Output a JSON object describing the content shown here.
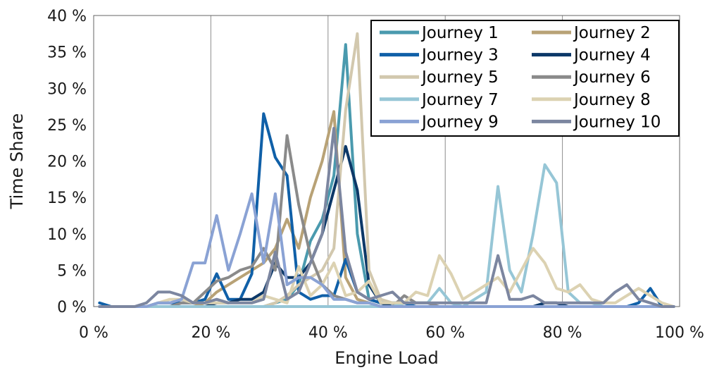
{
  "chart_data": {
    "type": "line",
    "xlabel": "Engine Load",
    "ylabel": "Time Share",
    "xlim": [
      0,
      100
    ],
    "ylim": [
      0,
      40
    ],
    "x_tick_labels": [
      "0 %",
      "20 %",
      "40 %",
      "60 %",
      "80 %",
      "100 %"
    ],
    "y_tick_labels": [
      "0 %",
      "5 %",
      "10 %",
      "15 %",
      "20 %",
      "25 %",
      "30 %",
      "35 %",
      "40 %"
    ],
    "grid": "vertical",
    "legend_position": "top-right",
    "x": [
      1,
      3,
      5,
      7,
      9,
      11,
      13,
      15,
      17,
      19,
      21,
      23,
      25,
      27,
      29,
      31,
      33,
      35,
      37,
      39,
      41,
      43,
      45,
      47,
      49,
      51,
      53,
      55,
      57,
      59,
      61,
      63,
      65,
      67,
      69,
      71,
      73,
      75,
      77,
      79,
      81,
      83,
      85,
      87,
      89,
      91,
      93,
      95,
      97,
      99
    ],
    "series": [
      {
        "name": "Journey 1",
        "color": "#4a9aae",
        "values": [
          0,
          0,
          0,
          0,
          0,
          0,
          0,
          0,
          0,
          0,
          0,
          0,
          0,
          0,
          0,
          0.5,
          1,
          3,
          9,
          12,
          18,
          36,
          10,
          1,
          0.5,
          0,
          0,
          0,
          0,
          0,
          0,
          0,
          0,
          0,
          0,
          0,
          0,
          0,
          0,
          0,
          0,
          0,
          0,
          0,
          0,
          0,
          0,
          0,
          0,
          0
        ]
      },
      {
        "name": "Journey 2",
        "color": "#b8a276",
        "values": [
          0,
          0,
          0,
          0,
          0,
          0,
          0,
          0,
          0,
          0.5,
          2,
          3,
          4,
          5,
          6,
          8,
          12,
          8,
          15,
          20,
          26.8,
          4,
          1,
          0.5,
          0,
          0,
          0,
          0,
          0,
          0,
          0,
          0,
          0,
          0,
          0,
          0,
          0,
          0,
          0,
          0,
          0,
          0,
          0,
          0,
          0,
          0,
          0,
          0,
          0,
          0
        ]
      },
      {
        "name": "Journey 3",
        "color": "#1060a8",
        "values": [
          0.5,
          0,
          0,
          0,
          0,
          0.5,
          0.5,
          0.5,
          0.5,
          1,
          4.5,
          1,
          1,
          4.5,
          26.5,
          20.5,
          18,
          2,
          1,
          1.5,
          1.5,
          6.5,
          2,
          1,
          0.5,
          0.5,
          0.5,
          0,
          0,
          0,
          0,
          0,
          0,
          0,
          0,
          0,
          0,
          0,
          0,
          0,
          0,
          0,
          0,
          0,
          0,
          0,
          0.5,
          2.5,
          0,
          0
        ]
      },
      {
        "name": "Journey 4",
        "color": "#0c3868",
        "values": [
          0,
          0,
          0,
          0,
          0,
          0,
          0,
          0,
          0,
          0,
          0.5,
          0.5,
          1,
          1,
          2,
          6,
          4,
          4,
          6,
          10,
          16,
          22,
          16,
          3,
          0.5,
          0,
          0,
          0,
          0,
          0,
          0,
          0,
          0,
          0,
          0,
          0,
          0,
          0,
          0.5,
          0.5,
          0,
          0,
          0,
          0,
          0,
          0,
          0,
          0,
          0,
          0
        ]
      },
      {
        "name": "Journey 5",
        "color": "#d2c8ae",
        "values": [
          0,
          0,
          0,
          0,
          0,
          0,
          0,
          0,
          0,
          0,
          0,
          0,
          0,
          0,
          0,
          0.5,
          1.5,
          3,
          4,
          5,
          8,
          27,
          37.5,
          5,
          1,
          0.5,
          0,
          0,
          0,
          0,
          0,
          0,
          0,
          0,
          0,
          0,
          0,
          0,
          0,
          0,
          0,
          0,
          0,
          0,
          0,
          0,
          0,
          0,
          0,
          0
        ]
      },
      {
        "name": "Journey 6",
        "color": "#8a8a8a",
        "values": [
          0,
          0,
          0,
          0,
          0,
          0,
          0,
          0.5,
          0.5,
          2,
          3.5,
          4,
          5,
          5.5,
          8,
          5,
          23.5,
          14,
          7,
          3,
          1.5,
          1,
          0.5,
          0.5,
          0,
          0,
          1.5,
          0.5,
          0.5,
          0,
          0,
          0,
          0,
          0,
          0,
          0,
          0,
          0,
          0,
          0,
          0,
          0,
          0,
          0,
          0,
          0,
          0,
          0,
          0,
          0
        ]
      },
      {
        "name": "Journey 7",
        "color": "#96c6d6",
        "values": [
          0,
          0,
          0,
          0,
          0,
          0,
          0,
          0,
          0,
          0,
          0,
          0,
          0,
          0,
          0,
          0,
          0,
          0,
          0,
          0,
          0,
          0,
          0,
          0,
          0,
          0,
          0.5,
          0.5,
          0.5,
          2.5,
          0.5,
          0,
          1,
          2,
          16.5,
          5,
          2,
          10,
          19.5,
          17,
          2,
          0.5,
          0.5,
          0,
          0,
          0,
          0,
          0,
          0,
          0
        ]
      },
      {
        "name": "Journey 8",
        "color": "#dcd2b2",
        "values": [
          0,
          0,
          0,
          0,
          0,
          0.5,
          1,
          1,
          0.5,
          0.5,
          0.5,
          0.5,
          0.5,
          0.5,
          1.5,
          1,
          0.5,
          5.5,
          1.5,
          3,
          6,
          1.5,
          2,
          3.5,
          0.5,
          0.5,
          0.5,
          2,
          1.5,
          7,
          4.5,
          1,
          2,
          3,
          4,
          2,
          5,
          8,
          6,
          2.5,
          2,
          3,
          1,
          0.5,
          0.5,
          1.5,
          2.5,
          1.5,
          0.5,
          0
        ]
      },
      {
        "name": "Journey 9",
        "color": "#8aa2d4",
        "values": [
          0,
          0,
          0,
          0,
          0,
          0.5,
          0.5,
          1,
          6,
          6,
          12.5,
          5,
          10,
          15.5,
          6,
          15.5,
          3,
          4,
          4,
          3,
          1,
          1,
          0.5,
          0.5,
          0,
          0,
          0,
          0,
          0,
          0,
          0,
          0,
          0,
          0,
          0,
          0,
          0,
          0,
          0,
          0,
          0,
          0,
          0,
          0,
          0,
          0,
          0,
          0,
          0,
          0
        ]
      },
      {
        "name": "Journey 10",
        "color": "#7c86a0",
        "values": [
          0,
          0,
          0,
          0,
          0.5,
          2,
          2,
          1.5,
          0.5,
          0.5,
          1,
          0.5,
          0.5,
          0.5,
          1,
          7.5,
          1,
          2,
          6,
          10,
          24.5,
          7.5,
          2,
          1,
          1.5,
          2,
          0.5,
          0.5,
          0.5,
          0.5,
          0.5,
          0.5,
          0.5,
          0.5,
          7,
          1,
          1,
          1.5,
          0.5,
          0.5,
          0.5,
          0.5,
          0.5,
          0.5,
          2,
          3,
          1,
          0.5,
          0,
          0
        ]
      }
    ]
  }
}
